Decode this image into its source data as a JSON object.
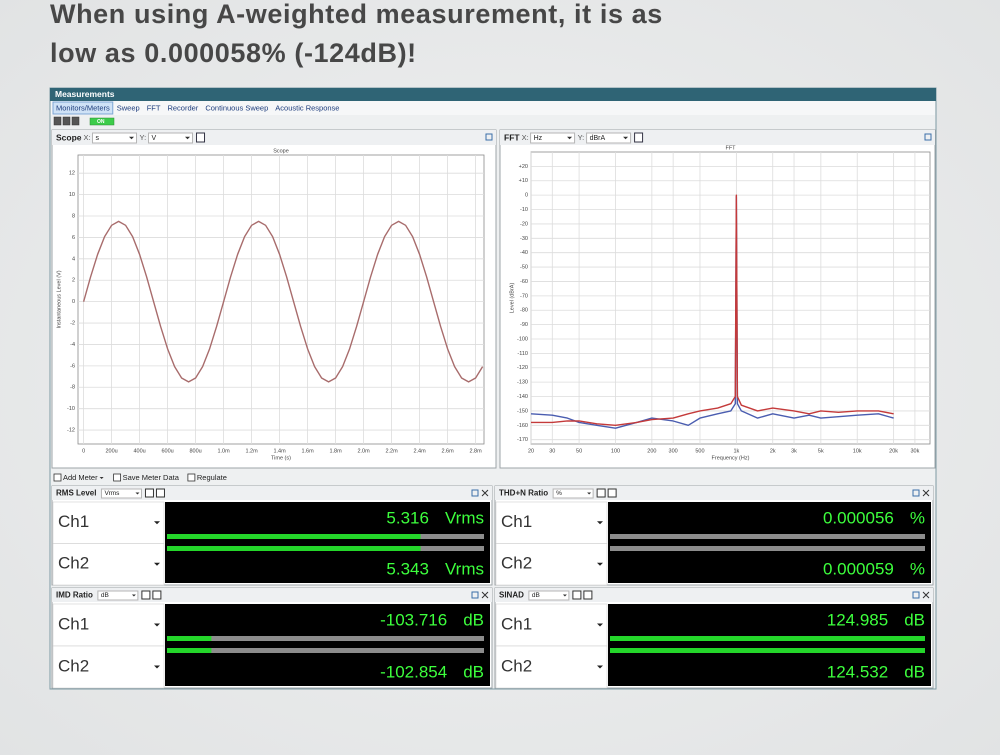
{
  "headline": {
    "lines": [
      "When using A-weighted measurement, it is as",
      "low as 0.000058% (-124dB)!"
    ]
  },
  "window": {
    "title": "Measurements",
    "tabs": [
      "Monitors/Meters",
      "Sweep",
      "FFT",
      "Recorder",
      "Continuous Sweep",
      "Acoustic Response"
    ],
    "toolbar_button": "ON"
  },
  "panels": [
    {
      "title": "Scope",
      "x_label": "X:",
      "x_unit": "s",
      "y_label": "Y:",
      "y_unit": "V"
    },
    {
      "title": "FFT",
      "x_label": "X:",
      "x_unit": "Hz",
      "y_label": "Y:",
      "y_unit": "dBrA"
    }
  ],
  "meter_toolbar": [
    "Add Meter",
    "Save Meter Data",
    "Regulate"
  ],
  "meters": [
    {
      "title": "RMS Level",
      "unit": "Vrms",
      "channels": [
        {
          "label": "Ch1",
          "value": 5.316
        },
        {
          "label": "Ch2",
          "value": 5.343
        }
      ]
    },
    {
      "title": "THD+N Ratio",
      "unit": "%",
      "channels": [
        {
          "label": "Ch1",
          "value": 5.6e-05
        },
        {
          "label": "Ch2",
          "value": 5.9e-05
        }
      ]
    },
    {
      "title": "IMD Ratio",
      "unit": "dB",
      "channels": [
        {
          "label": "Ch1",
          "value": -103.716
        },
        {
          "label": "Ch2",
          "value": -102.854
        }
      ]
    },
    {
      "title": "SINAD",
      "unit": "dB",
      "channels": [
        {
          "label": "Ch1",
          "value": 124.985
        },
        {
          "label": "Ch2",
          "value": 124.532
        }
      ]
    }
  ],
  "chart_data": [
    {
      "type": "line",
      "title": "Scope",
      "x_label": "Time (s)",
      "y_label": "Instantaneous Level (V)",
      "x": [
        0,
        5e-05,
        0.0001,
        0.00015,
        0.0002,
        0.00025,
        0.0003,
        0.00035,
        0.0004,
        0.00045,
        0.0005,
        0.00055,
        0.0006,
        0.00065,
        0.0007,
        0.00075,
        0.0008,
        0.00085,
        0.0009,
        0.00095,
        0.001,
        0.00105,
        0.0011,
        0.00115,
        0.0012,
        0.00125,
        0.0013,
        0.00135,
        0.0014,
        0.00145,
        0.0015,
        0.00155,
        0.0016,
        0.00165,
        0.0017,
        0.00175,
        0.0018,
        0.00185,
        0.0019,
        0.00195,
        0.002,
        0.00205,
        0.0021,
        0.00215,
        0.0022,
        0.00225,
        0.0023,
        0.00235,
        0.0024,
        0.00245,
        0.0025,
        0.00255,
        0.0026,
        0.00265,
        0.0027,
        0.00275,
        0.0028,
        0.00285
      ],
      "values": [
        0,
        2.32,
        4.41,
        6.07,
        7.13,
        7.5,
        7.13,
        6.07,
        4.41,
        2.32,
        0,
        -2.32,
        -4.41,
        -6.07,
        -7.13,
        -7.5,
        -7.13,
        -6.07,
        -4.41,
        -2.32,
        0,
        2.32,
        4.41,
        6.07,
        7.13,
        7.5,
        7.13,
        6.07,
        4.41,
        2.32,
        0,
        -2.32,
        -4.41,
        -6.07,
        -7.13,
        -7.5,
        -7.13,
        -6.07,
        -4.41,
        -2.32,
        0,
        2.32,
        4.41,
        6.07,
        7.13,
        7.5,
        7.13,
        6.07,
        4.41,
        2.32,
        0,
        -2.32,
        -4.41,
        -6.07,
        -7.13,
        -7.5,
        -7.13,
        -6.07
      ],
      "color": "#a86c6c",
      "xlim": [
        -4e-05,
        0.00286
      ],
      "xticks": [
        0,
        {
          "value": 0.0002,
          "label": "200u"
        },
        {
          "value": 0.0004,
          "label": "400u"
        },
        {
          "value": 0.0006,
          "label": "600u"
        },
        {
          "value": 0.0008,
          "label": "800u"
        },
        {
          "value": 0.001,
          "label": "1.0m"
        },
        {
          "value": 0.0012,
          "label": "1.2m"
        },
        {
          "value": 0.0014,
          "label": "1.4m"
        },
        {
          "value": 0.0016,
          "label": "1.6m"
        },
        {
          "value": 0.0018,
          "label": "1.8m"
        },
        {
          "value": 0.002,
          "label": "2.0m"
        },
        {
          "value": 0.0022,
          "label": "2.2m"
        },
        {
          "value": 0.0024,
          "label": "2.4m"
        },
        {
          "value": 0.0026,
          "label": "2.6m"
        },
        {
          "value": 0.0028,
          "label": "2.8m"
        }
      ],
      "ylim": [
        -13.3,
        13.7
      ],
      "yticks": [
        12,
        10,
        8,
        6,
        4,
        2,
        0,
        -2,
        -4,
        -6,
        -8,
        -10,
        -12
      ],
      "grid": true
    },
    {
      "type": "line",
      "title": "FFT",
      "x_label": "Frequency (Hz)",
      "y_label": "Level (dBrA)",
      "log_x": true,
      "x": [
        20,
        30,
        40,
        50,
        70,
        100,
        150,
        200,
        300,
        400,
        500,
        700,
        900,
        980,
        1000,
        1020,
        1100,
        1500,
        2000,
        3000,
        4000,
        5000,
        7000,
        10000,
        15000,
        20000
      ],
      "series": [
        {
          "color": "#4a5db0",
          "values": [
            -152,
            -153,
            -155,
            -158,
            -160,
            -162,
            -158,
            -155,
            -157,
            -160,
            -155,
            -152,
            -150,
            -145,
            -1,
            -145,
            -150,
            -155,
            -152,
            -155,
            -153,
            -155,
            -154,
            -153,
            -152,
            -155
          ]
        },
        {
          "color": "#c43a3a",
          "values": [
            -158,
            -158,
            -157,
            -157,
            -159,
            -160,
            -158,
            -156,
            -155,
            -152,
            -150,
            -148,
            -145,
            -140,
            0,
            -140,
            -146,
            -150,
            -148,
            -150,
            -152,
            -150,
            -151,
            -150,
            -150,
            -152
          ]
        }
      ],
      "xlim": [
        20,
        40000
      ],
      "xticks": [
        20,
        30,
        50,
        100,
        200,
        300,
        500,
        {
          "value": 1000,
          "label": "1k"
        },
        {
          "value": 2000,
          "label": "2k"
        },
        {
          "value": 3000,
          "label": "3k"
        },
        {
          "value": 5000,
          "label": "5k"
        },
        {
          "value": 10000,
          "label": "10k"
        },
        {
          "value": 20000,
          "label": "20k"
        },
        {
          "value": 30000,
          "label": "30k"
        }
      ],
      "ylim": [
        -173,
        30
      ],
      "yticks": [
        {
          "value": 20,
          "label": "+20"
        },
        {
          "value": 10,
          "label": "+10"
        },
        0,
        -10,
        -20,
        -30,
        -40,
        -50,
        -60,
        -70,
        -80,
        -90,
        -100,
        -110,
        -120,
        -130,
        -140,
        -150,
        -160,
        -170
      ],
      "grid": true
    }
  ]
}
